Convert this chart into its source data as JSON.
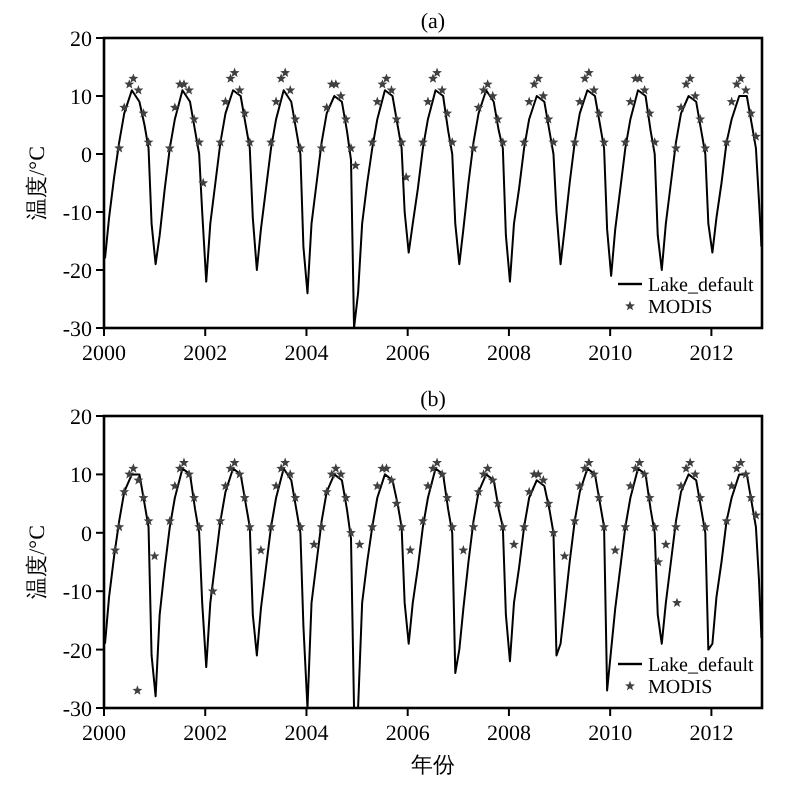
{
  "chart_data": [
    {
      "type": "line",
      "title": "(a)",
      "ylabel": "温度/°C",
      "xlim": [
        2000,
        2013
      ],
      "xticks": [
        2000,
        2002,
        2004,
        2006,
        2008,
        2010,
        2012
      ],
      "ylim": [
        -30,
        20
      ],
      "yticks": [
        -30,
        -20,
        -10,
        0,
        10,
        20
      ],
      "legend": "bottom right",
      "series": [
        {
          "name": "Lake_default",
          "type": "line",
          "color": "#000000",
          "line_style": "solid",
          "x": [
            2000.02,
            2000.1,
            2000.2,
            2000.3,
            2000.4,
            2000.55,
            2000.7,
            2000.8,
            2000.88,
            2000.94,
            2001.02,
            2001.1,
            2001.2,
            2001.3,
            2001.4,
            2001.55,
            2001.7,
            2001.8,
            2001.88,
            2001.94,
            2002.02,
            2002.1,
            2002.2,
            2002.3,
            2002.4,
            2002.55,
            2002.7,
            2002.8,
            2002.88,
            2002.94,
            2003.02,
            2003.1,
            2003.2,
            2003.3,
            2003.4,
            2003.55,
            2003.7,
            2003.8,
            2003.88,
            2003.94,
            2004.02,
            2004.1,
            2004.2,
            2004.3,
            2004.4,
            2004.55,
            2004.7,
            2004.8,
            2004.88,
            2004.94,
            2005.02,
            2005.1,
            2005.2,
            2005.3,
            2005.4,
            2005.55,
            2005.7,
            2005.8,
            2005.88,
            2005.94,
            2006.02,
            2006.1,
            2006.2,
            2006.3,
            2006.4,
            2006.55,
            2006.7,
            2006.8,
            2006.88,
            2006.94,
            2007.02,
            2007.1,
            2007.2,
            2007.3,
            2007.4,
            2007.55,
            2007.7,
            2007.8,
            2007.88,
            2007.94,
            2008.02,
            2008.1,
            2008.2,
            2008.3,
            2008.4,
            2008.55,
            2008.7,
            2008.8,
            2008.88,
            2008.94,
            2009.02,
            2009.1,
            2009.2,
            2009.3,
            2009.4,
            2009.55,
            2009.7,
            2009.8,
            2009.88,
            2009.94,
            2010.02,
            2010.1,
            2010.2,
            2010.3,
            2010.4,
            2010.55,
            2010.7,
            2010.8,
            2010.88,
            2010.94,
            2011.02,
            2011.1,
            2011.2,
            2011.3,
            2011.4,
            2011.55,
            2011.7,
            2011.8,
            2011.88,
            2011.94,
            2012.02,
            2012.1,
            2012.2,
            2012.3,
            2012.4,
            2012.55,
            2012.7,
            2012.8,
            2012.88,
            2012.94,
            2012.99
          ],
          "values": [
            -18,
            -11,
            -4,
            2,
            7,
            11,
            9,
            5,
            1,
            -12,
            -19,
            -14,
            -6,
            1,
            6,
            11,
            9,
            4,
            0,
            -10,
            -22,
            -12,
            -5,
            2,
            7,
            11,
            10,
            5,
            1,
            -11,
            -20,
            -13,
            -6,
            1,
            6,
            11,
            9,
            4,
            0,
            -16,
            -24,
            -12,
            -5,
            2,
            7,
            10,
            9,
            4,
            -1,
            -30,
            -24,
            -12,
            -5,
            1,
            6,
            11,
            10,
            5,
            1,
            -10,
            -17,
            -12,
            -6,
            1,
            6,
            11,
            10,
            4,
            0,
            -12,
            -19,
            -13,
            -5,
            2,
            7,
            11,
            9,
            4,
            1,
            -14,
            -22,
            -12,
            -6,
            1,
            6,
            10,
            9,
            4,
            0,
            -10,
            -19,
            -13,
            -5,
            2,
            7,
            11,
            10,
            5,
            1,
            -13,
            -21,
            -13,
            -6,
            1,
            6,
            11,
            10,
            4,
            0,
            -14,
            -20,
            -12,
            -5,
            2,
            7,
            10,
            9,
            4,
            0,
            -12,
            -17,
            -11,
            -5,
            2,
            6,
            10,
            10,
            5,
            1,
            -8,
            -16
          ]
        },
        {
          "name": "MODIS",
          "type": "scatter",
          "color": "#404040",
          "marker": "star",
          "x": [
            2000.3,
            2000.4,
            2000.5,
            2000.58,
            2000.68,
            2000.78,
            2000.88,
            2001.3,
            2001.4,
            2001.5,
            2001.58,
            2001.68,
            2001.78,
            2001.88,
            2002.3,
            2002.4,
            2002.5,
            2002.58,
            2002.68,
            2002.78,
            2002.88,
            2003.3,
            2003.4,
            2003.5,
            2003.58,
            2003.68,
            2003.78,
            2003.88,
            2004.3,
            2004.4,
            2004.5,
            2004.58,
            2004.68,
            2004.78,
            2004.88,
            2005.3,
            2005.4,
            2005.5,
            2005.58,
            2005.68,
            2005.78,
            2005.88,
            2006.3,
            2006.4,
            2006.5,
            2006.58,
            2006.68,
            2006.78,
            2006.88,
            2007.3,
            2007.4,
            2007.5,
            2007.58,
            2007.68,
            2007.78,
            2007.88,
            2008.3,
            2008.4,
            2008.5,
            2008.58,
            2008.68,
            2008.78,
            2008.88,
            2009.3,
            2009.4,
            2009.5,
            2009.58,
            2009.68,
            2009.78,
            2009.88,
            2010.3,
            2010.4,
            2010.5,
            2010.58,
            2010.68,
            2010.78,
            2010.88,
            2011.3,
            2011.4,
            2011.5,
            2011.58,
            2011.68,
            2011.78,
            2011.88,
            2012.3,
            2012.4,
            2012.5,
            2012.58,
            2012.68,
            2012.78,
            2012.88,
            2001.96,
            2004.97,
            2005.97
          ],
          "values": [
            1,
            8,
            12,
            13,
            11,
            7,
            2,
            1,
            8,
            12,
            12,
            11,
            6,
            2,
            2,
            9,
            13,
            14,
            11,
            7,
            2,
            2,
            9,
            13,
            14,
            11,
            6,
            1,
            1,
            8,
            12,
            12,
            10,
            6,
            1,
            2,
            9,
            12,
            13,
            11,
            6,
            2,
            2,
            9,
            13,
            14,
            11,
            7,
            2,
            1,
            8,
            11,
            12,
            10,
            6,
            2,
            2,
            9,
            12,
            13,
            10,
            6,
            2,
            2,
            9,
            13,
            14,
            11,
            7,
            2,
            2,
            9,
            13,
            13,
            11,
            7,
            2,
            1,
            8,
            12,
            13,
            10,
            6,
            1,
            2,
            9,
            12,
            13,
            11,
            7,
            3,
            -5,
            -2,
            -4
          ]
        }
      ]
    },
    {
      "type": "line",
      "title": "(b)",
      "xlabel": "年份",
      "ylabel": "温度/°C",
      "xlim": [
        2000,
        2013
      ],
      "xticks": [
        2000,
        2002,
        2004,
        2006,
        2008,
        2010,
        2012
      ],
      "ylim": [
        -30,
        20
      ],
      "yticks": [
        -30,
        -20,
        -10,
        0,
        10,
        20
      ],
      "legend": "bottom right",
      "series": [
        {
          "name": "Lake_default",
          "type": "line",
          "color": "#000000",
          "line_style": "solid",
          "x": [
            2000.02,
            2000.1,
            2000.2,
            2000.3,
            2000.4,
            2000.55,
            2000.7,
            2000.8,
            2000.88,
            2000.94,
            2001.02,
            2001.1,
            2001.2,
            2001.3,
            2001.4,
            2001.55,
            2001.7,
            2001.8,
            2001.88,
            2001.94,
            2002.02,
            2002.1,
            2002.2,
            2002.3,
            2002.4,
            2002.55,
            2002.7,
            2002.8,
            2002.88,
            2002.94,
            2003.02,
            2003.1,
            2003.2,
            2003.3,
            2003.4,
            2003.55,
            2003.7,
            2003.8,
            2003.88,
            2003.94,
            2004.02,
            2004.1,
            2004.2,
            2004.3,
            2004.4,
            2004.55,
            2004.7,
            2004.8,
            2004.88,
            2004.94,
            2005.02,
            2005.1,
            2005.2,
            2005.3,
            2005.4,
            2005.55,
            2005.7,
            2005.8,
            2005.88,
            2005.94,
            2006.02,
            2006.1,
            2006.2,
            2006.3,
            2006.4,
            2006.55,
            2006.7,
            2006.8,
            2006.88,
            2006.94,
            2007.02,
            2007.1,
            2007.2,
            2007.3,
            2007.4,
            2007.55,
            2007.7,
            2007.8,
            2007.88,
            2007.94,
            2008.02,
            2008.1,
            2008.2,
            2008.3,
            2008.4,
            2008.55,
            2008.7,
            2008.8,
            2008.88,
            2008.94,
            2009.02,
            2009.1,
            2009.2,
            2009.3,
            2009.4,
            2009.55,
            2009.7,
            2009.8,
            2009.88,
            2009.94,
            2010.02,
            2010.1,
            2010.2,
            2010.3,
            2010.4,
            2010.55,
            2010.7,
            2010.8,
            2010.88,
            2010.94,
            2011.02,
            2011.1,
            2011.2,
            2011.3,
            2011.4,
            2011.55,
            2011.7,
            2011.8,
            2011.88,
            2011.94,
            2012.02,
            2012.1,
            2012.2,
            2012.3,
            2012.4,
            2012.55,
            2012.7,
            2012.8,
            2012.88,
            2012.94,
            2012.99
          ],
          "values": [
            -19,
            -11,
            -4,
            2,
            7,
            10,
            10,
            5,
            1,
            -21,
            -28,
            -14,
            -6,
            1,
            6,
            11,
            10,
            4,
            0,
            -12,
            -23,
            -12,
            -5,
            2,
            7,
            11,
            10,
            5,
            1,
            -14,
            -21,
            -13,
            -6,
            1,
            6,
            11,
            9,
            4,
            0,
            -16,
            -30,
            -12,
            -5,
            2,
            7,
            10,
            9,
            4,
            -1,
            -30,
            -30,
            -12,
            -5,
            1,
            6,
            10,
            9,
            5,
            1,
            -12,
            -19,
            -12,
            -6,
            1,
            6,
            11,
            10,
            4,
            0,
            -24,
            -20,
            -13,
            -5,
            2,
            7,
            10,
            9,
            4,
            1,
            -14,
            -22,
            -12,
            -6,
            1,
            6,
            9,
            8,
            4,
            0,
            -21,
            -19,
            -13,
            -5,
            2,
            7,
            11,
            10,
            5,
            1,
            -27,
            -20,
            -13,
            -6,
            1,
            6,
            11,
            10,
            4,
            0,
            -14,
            -19,
            -12,
            -5,
            2,
            7,
            10,
            9,
            4,
            0,
            -20,
            -19,
            -11,
            -5,
            2,
            6,
            10,
            10,
            5,
            1,
            -8,
            -18
          ]
        },
        {
          "name": "MODIS",
          "type": "scatter",
          "color": "#404040",
          "marker": "star",
          "x": [
            2000.3,
            2000.4,
            2000.5,
            2000.58,
            2000.68,
            2000.78,
            2000.88,
            2001.3,
            2001.4,
            2001.5,
            2001.58,
            2001.68,
            2001.78,
            2001.88,
            2002.3,
            2002.4,
            2002.5,
            2002.58,
            2002.68,
            2002.78,
            2002.88,
            2003.3,
            2003.4,
            2003.5,
            2003.58,
            2003.68,
            2003.78,
            2003.88,
            2004.3,
            2004.4,
            2004.5,
            2004.58,
            2004.68,
            2004.78,
            2004.88,
            2005.3,
            2005.4,
            2005.5,
            2005.58,
            2005.68,
            2005.78,
            2005.88,
            2006.3,
            2006.4,
            2006.5,
            2006.58,
            2006.68,
            2006.78,
            2006.88,
            2007.3,
            2007.4,
            2007.5,
            2007.58,
            2007.68,
            2007.78,
            2007.88,
            2008.3,
            2008.4,
            2008.5,
            2008.58,
            2008.68,
            2008.78,
            2008.88,
            2009.3,
            2009.4,
            2009.5,
            2009.58,
            2009.68,
            2009.78,
            2009.88,
            2010.3,
            2010.4,
            2010.5,
            2010.58,
            2010.68,
            2010.78,
            2010.88,
            2011.3,
            2011.4,
            2011.5,
            2011.58,
            2011.68,
            2011.78,
            2011.88,
            2012.3,
            2012.4,
            2012.5,
            2012.58,
            2012.68,
            2012.78,
            2012.88,
            2000.22,
            2000.66,
            2001.0,
            2002.15,
            2003.1,
            2004.15,
            2005.05,
            2006.05,
            2007.1,
            2008.1,
            2009.1,
            2010.1,
            2010.95,
            2011.1,
            2011.32
          ],
          "values": [
            1,
            7,
            10,
            11,
            9,
            6,
            2,
            2,
            8,
            11,
            12,
            10,
            6,
            1,
            2,
            8,
            11,
            12,
            10,
            6,
            1,
            1,
            8,
            11,
            12,
            10,
            6,
            1,
            1,
            7,
            10,
            11,
            10,
            6,
            0,
            1,
            8,
            11,
            11,
            9,
            5,
            1,
            2,
            8,
            11,
            12,
            10,
            6,
            1,
            1,
            7,
            10,
            11,
            9,
            5,
            1,
            1,
            7,
            10,
            10,
            9,
            5,
            0,
            2,
            8,
            11,
            12,
            10,
            6,
            1,
            1,
            8,
            11,
            12,
            10,
            6,
            1,
            1,
            8,
            11,
            12,
            10,
            6,
            1,
            2,
            8,
            11,
            12,
            10,
            6,
            3,
            -3,
            -27,
            -4,
            -10,
            -3,
            -2,
            -2,
            -3,
            -3,
            -2,
            -4,
            -3,
            -5,
            -2,
            -12
          ]
        }
      ]
    }
  ]
}
